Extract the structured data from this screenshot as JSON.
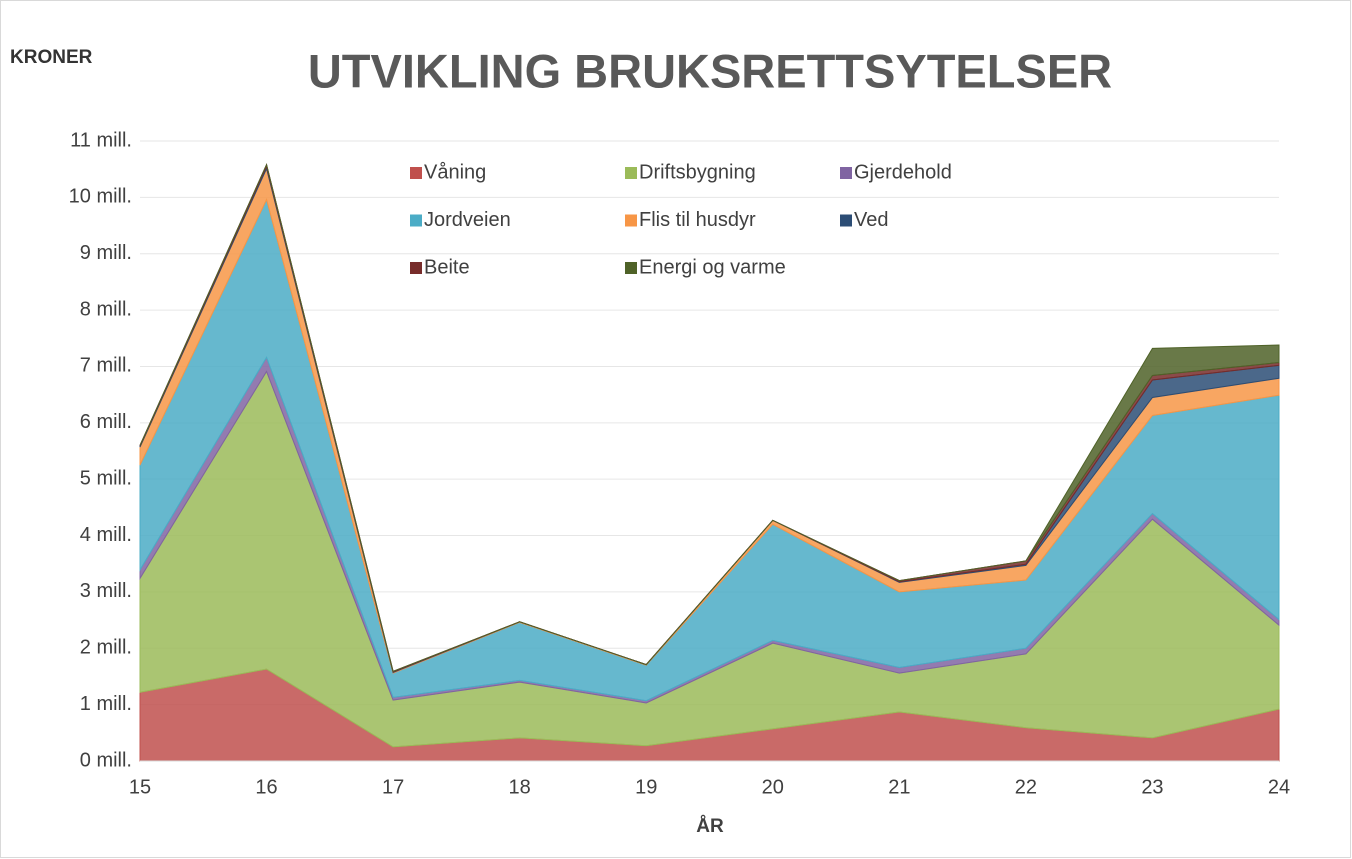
{
  "chart_data": {
    "type": "stacked_area",
    "title": "UTVIKLING BRUKSRETTSYTELSER",
    "y_label": "KRONER",
    "x_label": "ÅR",
    "x": [
      15,
      16,
      17,
      18,
      19,
      20,
      21,
      22,
      23,
      24
    ],
    "xlim": [
      15,
      24
    ],
    "xticks": [
      15,
      16,
      17,
      18,
      19,
      20,
      21,
      22,
      23,
      24
    ],
    "ylim": [
      0,
      11
    ],
    "yticks": [
      {
        "value": 0,
        "label": "0 mill."
      },
      {
        "value": 1,
        "label": "1 mill."
      },
      {
        "value": 2,
        "label": "2 mill."
      },
      {
        "value": 3,
        "label": "3 mill."
      },
      {
        "value": 4,
        "label": "4 mill."
      },
      {
        "value": 5,
        "label": "5 mill."
      },
      {
        "value": 6,
        "label": "6 mill."
      },
      {
        "value": 7,
        "label": "7 mill."
      },
      {
        "value": 8,
        "label": "8 mill."
      },
      {
        "value": 9,
        "label": "9 mill."
      },
      {
        "value": 10,
        "label": "10 mill."
      },
      {
        "value": 11,
        "label": "11 mill."
      }
    ],
    "grid": true,
    "legend": "top",
    "series": [
      {
        "name": "Våning",
        "color": "#c0504d",
        "values": [
          1.22,
          1.63,
          0.25,
          0.41,
          0.27,
          0.57,
          0.87,
          0.59,
          0.41,
          0.92
        ]
      },
      {
        "name": "Driftsbygning",
        "color": "#9bbb59",
        "values": [
          2.02,
          5.28,
          0.83,
          0.99,
          0.76,
          1.52,
          0.69,
          1.31,
          3.88,
          1.49
        ]
      },
      {
        "name": "Gjerdehold",
        "color": "#8064a2",
        "values": [
          0.15,
          0.25,
          0.05,
          0.03,
          0.04,
          0.05,
          0.1,
          0.1,
          0.1,
          0.1
        ]
      },
      {
        "name": "Jordveien",
        "color": "#4bacc6",
        "values": [
          1.86,
          2.8,
          0.43,
          1.03,
          0.63,
          2.06,
          1.34,
          1.21,
          1.74,
          3.98
        ]
      },
      {
        "name": "Flis til husdyr",
        "color": "#f79646",
        "values": [
          0.32,
          0.55,
          0.01,
          0.01,
          0.01,
          0.07,
          0.17,
          0.26,
          0.32,
          0.3
        ]
      },
      {
        "name": "Ved",
        "color": "#2c4d75",
        "values": [
          0.02,
          0.04,
          0.01,
          0,
          0,
          0,
          0.01,
          0.02,
          0.31,
          0.23
        ]
      },
      {
        "name": "Beite",
        "color": "#772c2a",
        "values": [
          0.01,
          0.03,
          0.01,
          0,
          0,
          0,
          0.02,
          0.06,
          0.08,
          0.05
        ]
      },
      {
        "name": "Energi og varme",
        "color": "#4f6228",
        "values": [
          0,
          0,
          0,
          0,
          0,
          0,
          0,
          0,
          0.48,
          0.31
        ]
      }
    ]
  }
}
